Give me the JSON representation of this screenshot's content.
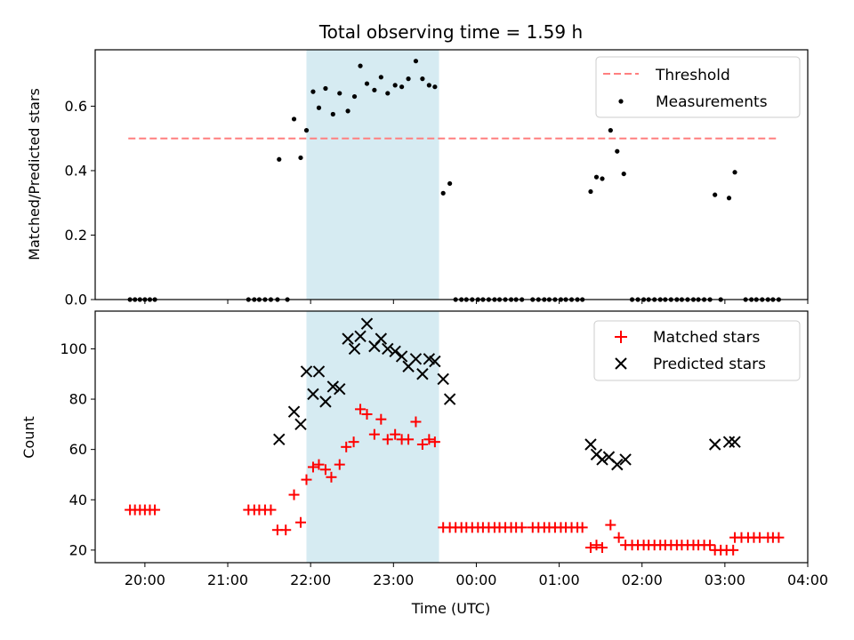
{
  "title": "Total observing time = 1.59 h",
  "x_axis": {
    "label": "Time (UTC)",
    "ticks": [
      "20:00",
      "21:00",
      "22:00",
      "23:00",
      "00:00",
      "01:00",
      "02:00",
      "03:00",
      "04:00"
    ],
    "tick_hours": [
      20,
      21,
      22,
      23,
      24,
      25,
      26,
      27,
      28
    ],
    "range_hours": [
      19.4,
      28.0
    ]
  },
  "shaded_interval_hours": [
    21.95,
    23.55
  ],
  "colors": {
    "shade": "#add8e6",
    "threshold": "#ff7f7f",
    "matched": "#ff0000",
    "predicted": "#000000",
    "measurements": "#000000"
  },
  "chart_data": [
    {
      "type": "scatter",
      "id": "ratio",
      "ylabel": "Matched/Predicted stars",
      "ylim": [
        0,
        0.775
      ],
      "yticks": [
        0.0,
        0.2,
        0.4,
        0.6
      ],
      "ytick_labels": [
        "0.0",
        "0.2",
        "0.4",
        "0.6"
      ],
      "legend_position": "top-right",
      "threshold": {
        "name": "Threshold",
        "value": 0.5,
        "x_range_hours": [
          19.8,
          27.65
        ]
      },
      "series": [
        {
          "name": "Measurements",
          "points": [
            [
              19.82,
              0
            ],
            [
              19.88,
              0
            ],
            [
              19.94,
              0
            ],
            [
              20.0,
              0
            ],
            [
              20.06,
              0
            ],
            [
              20.12,
              0
            ],
            [
              21.25,
              0
            ],
            [
              21.32,
              0
            ],
            [
              21.38,
              0
            ],
            [
              21.45,
              0
            ],
            [
              21.52,
              0
            ],
            [
              21.6,
              0
            ],
            [
              21.72,
              0
            ],
            [
              21.62,
              0.435
            ],
            [
              21.8,
              0.56
            ],
            [
              21.88,
              0.44
            ],
            [
              21.95,
              0.525
            ],
            [
              22.03,
              0.645
            ],
            [
              22.1,
              0.595
            ],
            [
              22.18,
              0.655
            ],
            [
              22.27,
              0.575
            ],
            [
              22.35,
              0.64
            ],
            [
              22.45,
              0.585
            ],
            [
              22.53,
              0.63
            ],
            [
              22.6,
              0.725
            ],
            [
              22.68,
              0.67
            ],
            [
              22.77,
              0.65
            ],
            [
              22.85,
              0.69
            ],
            [
              22.93,
              0.64
            ],
            [
              23.02,
              0.665
            ],
            [
              23.1,
              0.66
            ],
            [
              23.18,
              0.685
            ],
            [
              23.27,
              0.74
            ],
            [
              23.35,
              0.685
            ],
            [
              23.43,
              0.665
            ],
            [
              23.5,
              0.66
            ],
            [
              23.6,
              0.33
            ],
            [
              23.68,
              0.36
            ],
            [
              23.75,
              0
            ],
            [
              23.82,
              0
            ],
            [
              23.88,
              0
            ],
            [
              23.95,
              0
            ],
            [
              24.02,
              0
            ],
            [
              24.08,
              0
            ],
            [
              24.15,
              0
            ],
            [
              24.22,
              0
            ],
            [
              24.28,
              0
            ],
            [
              24.35,
              0
            ],
            [
              24.42,
              0
            ],
            [
              24.48,
              0
            ],
            [
              24.55,
              0
            ],
            [
              24.68,
              0
            ],
            [
              24.75,
              0
            ],
            [
              24.82,
              0
            ],
            [
              24.88,
              0
            ],
            [
              24.95,
              0
            ],
            [
              25.02,
              0
            ],
            [
              25.08,
              0
            ],
            [
              25.15,
              0
            ],
            [
              25.22,
              0
            ],
            [
              25.28,
              0
            ],
            [
              25.38,
              0.335
            ],
            [
              25.45,
              0.38
            ],
            [
              25.52,
              0.375
            ],
            [
              25.62,
              0.525
            ],
            [
              25.7,
              0.46
            ],
            [
              25.78,
              0.39
            ],
            [
              25.88,
              0
            ],
            [
              25.95,
              0
            ],
            [
              26.02,
              0
            ],
            [
              26.08,
              0
            ],
            [
              26.15,
              0
            ],
            [
              26.22,
              0
            ],
            [
              26.28,
              0
            ],
            [
              26.35,
              0
            ],
            [
              26.42,
              0
            ],
            [
              26.48,
              0
            ],
            [
              26.55,
              0
            ],
            [
              26.62,
              0
            ],
            [
              26.68,
              0
            ],
            [
              26.75,
              0
            ],
            [
              26.82,
              0
            ],
            [
              26.95,
              0
            ],
            [
              26.88,
              0.325
            ],
            [
              27.05,
              0.315
            ],
            [
              27.12,
              0.395
            ],
            [
              27.25,
              0
            ],
            [
              27.32,
              0
            ],
            [
              27.38,
              0
            ],
            [
              27.45,
              0
            ],
            [
              27.52,
              0
            ],
            [
              27.58,
              0
            ],
            [
              27.65,
              0
            ]
          ]
        }
      ]
    },
    {
      "type": "scatter",
      "id": "counts",
      "ylabel": "Count",
      "ylim": [
        15,
        115
      ],
      "yticks": [
        20,
        40,
        60,
        80,
        100
      ],
      "ytick_labels": [
        "20",
        "40",
        "60",
        "80",
        "100"
      ],
      "legend_position": "top-right",
      "series": [
        {
          "name": "Matched stars",
          "marker": "plus",
          "points": [
            [
              19.82,
              36
            ],
            [
              19.88,
              36
            ],
            [
              19.94,
              36
            ],
            [
              20.0,
              36
            ],
            [
              20.06,
              36
            ],
            [
              20.12,
              36
            ],
            [
              21.25,
              36
            ],
            [
              21.32,
              36
            ],
            [
              21.38,
              36
            ],
            [
              21.45,
              36
            ],
            [
              21.52,
              36
            ],
            [
              21.6,
              28
            ],
            [
              21.7,
              28
            ],
            [
              21.8,
              42
            ],
            [
              21.88,
              31
            ],
            [
              21.95,
              48
            ],
            [
              22.03,
              53
            ],
            [
              22.1,
              54
            ],
            [
              22.18,
              52
            ],
            [
              22.25,
              49
            ],
            [
              22.35,
              54
            ],
            [
              22.43,
              61
            ],
            [
              22.52,
              63
            ],
            [
              22.6,
              76
            ],
            [
              22.68,
              74
            ],
            [
              22.77,
              66
            ],
            [
              22.85,
              72
            ],
            [
              22.93,
              64
            ],
            [
              23.02,
              66
            ],
            [
              23.1,
              64
            ],
            [
              23.18,
              64
            ],
            [
              23.27,
              71
            ],
            [
              23.35,
              62
            ],
            [
              23.43,
              64
            ],
            [
              23.5,
              63
            ],
            [
              23.6,
              29
            ],
            [
              23.68,
              29
            ],
            [
              23.75,
              29
            ],
            [
              23.82,
              29
            ],
            [
              23.88,
              29
            ],
            [
              23.95,
              29
            ],
            [
              24.02,
              29
            ],
            [
              24.08,
              29
            ],
            [
              24.15,
              29
            ],
            [
              24.22,
              29
            ],
            [
              24.28,
              29
            ],
            [
              24.35,
              29
            ],
            [
              24.42,
              29
            ],
            [
              24.48,
              29
            ],
            [
              24.55,
              29
            ],
            [
              24.68,
              29
            ],
            [
              24.75,
              29
            ],
            [
              24.82,
              29
            ],
            [
              24.88,
              29
            ],
            [
              24.95,
              29
            ],
            [
              25.02,
              29
            ],
            [
              25.08,
              29
            ],
            [
              25.15,
              29
            ],
            [
              25.22,
              29
            ],
            [
              25.28,
              29
            ],
            [
              25.38,
              21
            ],
            [
              25.45,
              22
            ],
            [
              25.52,
              21
            ],
            [
              25.62,
              30
            ],
            [
              25.72,
              25
            ],
            [
              25.8,
              22
            ],
            [
              25.88,
              22
            ],
            [
              25.95,
              22
            ],
            [
              26.02,
              22
            ],
            [
              26.08,
              22
            ],
            [
              26.15,
              22
            ],
            [
              26.22,
              22
            ],
            [
              26.28,
              22
            ],
            [
              26.35,
              22
            ],
            [
              26.42,
              22
            ],
            [
              26.48,
              22
            ],
            [
              26.55,
              22
            ],
            [
              26.62,
              22
            ],
            [
              26.68,
              22
            ],
            [
              26.75,
              22
            ],
            [
              26.82,
              22
            ],
            [
              26.88,
              20
            ],
            [
              26.95,
              20
            ],
            [
              27.02,
              20
            ],
            [
              27.1,
              20
            ],
            [
              27.12,
              25
            ],
            [
              27.2,
              25
            ],
            [
              27.28,
              25
            ],
            [
              27.35,
              25
            ],
            [
              27.42,
              25
            ],
            [
              27.52,
              25
            ],
            [
              27.58,
              25
            ],
            [
              27.65,
              25
            ]
          ]
        },
        {
          "name": "Predicted stars",
          "marker": "x",
          "points": [
            [
              21.62,
              64
            ],
            [
              21.8,
              75
            ],
            [
              21.88,
              70
            ],
            [
              21.95,
              91
            ],
            [
              22.03,
              82
            ],
            [
              22.1,
              91
            ],
            [
              22.18,
              79
            ],
            [
              22.27,
              85
            ],
            [
              22.35,
              84
            ],
            [
              22.45,
              104
            ],
            [
              22.53,
              100
            ],
            [
              22.6,
              105
            ],
            [
              22.68,
              110
            ],
            [
              22.77,
              101
            ],
            [
              22.85,
              104
            ],
            [
              22.93,
              100
            ],
            [
              23.02,
              99
            ],
            [
              23.1,
              97
            ],
            [
              23.18,
              93
            ],
            [
              23.27,
              96
            ],
            [
              23.35,
              90
            ],
            [
              23.43,
              96
            ],
            [
              23.5,
              95
            ],
            [
              23.6,
              88
            ],
            [
              23.68,
              80
            ],
            [
              25.38,
              62
            ],
            [
              25.45,
              58
            ],
            [
              25.52,
              56
            ],
            [
              25.6,
              57
            ],
            [
              25.7,
              54
            ],
            [
              25.8,
              56
            ],
            [
              26.88,
              62
            ],
            [
              27.05,
              63
            ],
            [
              27.12,
              63
            ]
          ]
        }
      ]
    }
  ]
}
